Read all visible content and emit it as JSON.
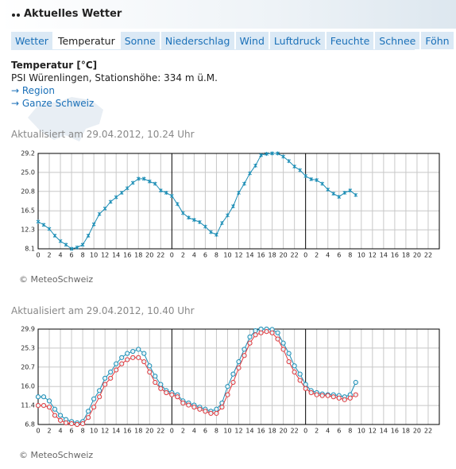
{
  "header": {
    "title": "Aktuelles Wetter"
  },
  "tabs": [
    {
      "label": "Wetter"
    },
    {
      "label": "Temperatur",
      "active": true
    },
    {
      "label": "Sonne"
    },
    {
      "label": "Niederschlag"
    },
    {
      "label": "Wind"
    },
    {
      "label": "Luftdruck"
    },
    {
      "label": "Feuchte"
    },
    {
      "label": "Schnee"
    },
    {
      "label": "Föhn"
    }
  ],
  "station": {
    "heading": "Temperatur [°C]",
    "name": "PSI Würenlingen, Stationshöhe: 334 m ü.M.",
    "links": [
      "Region",
      "Ganze Schweiz"
    ]
  },
  "chart_data": [
    {
      "type": "line",
      "updated": "Aktualisiert am 29.04.2012, 10.24 Uhr",
      "credit": "© MeteoSchweiz",
      "marker": "cross",
      "grid": true,
      "x": [
        0,
        1,
        2,
        3,
        4,
        5,
        6,
        7,
        8,
        9,
        10,
        11,
        12,
        13,
        14,
        15,
        16,
        17,
        18,
        19,
        20,
        21,
        22,
        23,
        24,
        25,
        26,
        27,
        28,
        29,
        30,
        31,
        32,
        33,
        34,
        35,
        36,
        37,
        38,
        39,
        40,
        41,
        42,
        43,
        44,
        45,
        46,
        47,
        48,
        49,
        50,
        51,
        52,
        53,
        54,
        55,
        56,
        57
      ],
      "xlim": [
        0,
        72
      ],
      "xticks": [
        0,
        2,
        4,
        6,
        8,
        10,
        12,
        14,
        16,
        18,
        20,
        22,
        {
          "value": 24,
          "label": "0"
        },
        {
          "value": 26,
          "label": "2"
        },
        {
          "value": 28,
          "label": "4"
        },
        {
          "value": 30,
          "label": "6"
        },
        {
          "value": 32,
          "label": "8"
        },
        {
          "value": 34,
          "label": "10"
        },
        {
          "value": 36,
          "label": "12"
        },
        {
          "value": 38,
          "label": "14"
        },
        {
          "value": 40,
          "label": "16"
        },
        {
          "value": 42,
          "label": "18"
        },
        {
          "value": 44,
          "label": "20"
        },
        {
          "value": 46,
          "label": "22"
        },
        {
          "value": 48,
          "label": "0"
        },
        {
          "value": 50,
          "label": "2"
        },
        {
          "value": 52,
          "label": "4"
        },
        {
          "value": 54,
          "label": "6"
        },
        {
          "value": 56,
          "label": "8"
        },
        {
          "value": 58,
          "label": "10"
        },
        {
          "value": 60,
          "label": "12"
        },
        {
          "value": 62,
          "label": "14"
        },
        {
          "value": 64,
          "label": "16"
        },
        {
          "value": 66,
          "label": "18"
        },
        {
          "value": 68,
          "label": "20"
        },
        {
          "value": 70,
          "label": "22"
        }
      ],
      "ylim": [
        8.1,
        29.2
      ],
      "yticks": [
        8.1,
        12.3,
        16.5,
        20.8,
        {
          "value": 25,
          "label": "25.0"
        },
        29.2
      ],
      "series": [
        {
          "color": "#1b8db5",
          "values": [
            14.1,
            13.4,
            12.5,
            11.0,
            9.8,
            9.0,
            8.1,
            8.4,
            9.0,
            11.0,
            13.5,
            15.8,
            17.0,
            18.5,
            19.5,
            20.5,
            21.5,
            22.7,
            23.6,
            23.6,
            23.0,
            22.5,
            21.0,
            20.5,
            19.8,
            18.0,
            16.0,
            15.0,
            14.5,
            14.0,
            13.0,
            11.8,
            11.2,
            13.8,
            15.5,
            17.5,
            20.5,
            22.5,
            24.8,
            26.5,
            28.8,
            29.1,
            29.2,
            29.2,
            28.5,
            27.5,
            26.3,
            25.5,
            24.2,
            23.5,
            23.3,
            22.5,
            21.2,
            20.3,
            19.6,
            20.5,
            21.0,
            20.0
          ]
        }
      ]
    },
    {
      "type": "line",
      "updated": "Aktualisiert am 29.04.2012, 10.40 Uhr",
      "credit": "© MeteoSchweiz",
      "marker": "circle",
      "grid": true,
      "x": [
        0,
        1,
        2,
        3,
        4,
        5,
        6,
        7,
        8,
        9,
        10,
        11,
        12,
        13,
        14,
        15,
        16,
        17,
        18,
        19,
        20,
        21,
        22,
        23,
        24,
        25,
        26,
        27,
        28,
        29,
        30,
        31,
        32,
        33,
        34,
        35,
        36,
        37,
        38,
        39,
        40,
        41,
        42,
        43,
        44,
        45,
        46,
        47,
        48,
        49,
        50,
        51,
        52,
        53,
        54,
        55,
        56,
        57
      ],
      "xlim": [
        0,
        72
      ],
      "xticks": [
        0,
        2,
        4,
        6,
        8,
        10,
        12,
        14,
        16,
        18,
        20,
        22,
        {
          "value": 24,
          "label": "0"
        },
        {
          "value": 26,
          "label": "2"
        },
        {
          "value": 28,
          "label": "4"
        },
        {
          "value": 30,
          "label": "6"
        },
        {
          "value": 32,
          "label": "8"
        },
        {
          "value": 34,
          "label": "10"
        },
        {
          "value": 36,
          "label": "12"
        },
        {
          "value": 38,
          "label": "14"
        },
        {
          "value": 40,
          "label": "16"
        },
        {
          "value": 42,
          "label": "18"
        },
        {
          "value": 44,
          "label": "20"
        },
        {
          "value": 46,
          "label": "22"
        },
        {
          "value": 48,
          "label": "0"
        },
        {
          "value": 50,
          "label": "2"
        },
        {
          "value": 52,
          "label": "4"
        },
        {
          "value": 54,
          "label": "6"
        },
        {
          "value": 56,
          "label": "8"
        },
        {
          "value": 58,
          "label": "10"
        },
        {
          "value": 60,
          "label": "12"
        },
        {
          "value": 62,
          "label": "14"
        },
        {
          "value": 64,
          "label": "16"
        },
        {
          "value": 66,
          "label": "18"
        },
        {
          "value": 68,
          "label": "20"
        },
        {
          "value": 70,
          "label": "22"
        }
      ],
      "ylim": [
        6.8,
        29.9
      ],
      "yticks": [
        6.8,
        11.4,
        {
          "value": 16,
          "label": "16.0"
        },
        20.7,
        25.3,
        29.9
      ],
      "series": [
        {
          "color": "#1b8db5",
          "values": [
            13.5,
            13.5,
            12.5,
            10.5,
            9.0,
            8.0,
            7.5,
            7.2,
            7.5,
            10.0,
            13.0,
            15.0,
            18.0,
            19.5,
            21.5,
            23.0,
            24.0,
            24.5,
            25.0,
            24.0,
            21.0,
            18.5,
            16.5,
            15.0,
            14.5,
            14.0,
            12.5,
            12.0,
            11.5,
            11.0,
            10.5,
            10.0,
            10.5,
            12.0,
            16.0,
            19.0,
            22.0,
            25.0,
            28.0,
            29.5,
            29.9,
            29.9,
            29.8,
            29.0,
            26.5,
            24.0,
            21.0,
            19.0,
            16.5,
            15.0,
            14.5,
            14.2,
            14.0,
            14.0,
            13.8,
            13.5,
            14.0,
            17.0
          ]
        },
        {
          "color": "#e0383c",
          "values": [
            11.4,
            11.4,
            11.0,
            9.0,
            7.8,
            7.2,
            7.0,
            6.8,
            7.0,
            8.5,
            11.0,
            13.5,
            16.5,
            18.0,
            20.0,
            21.5,
            22.5,
            23.0,
            23.0,
            22.0,
            19.5,
            17.0,
            15.5,
            14.5,
            14.0,
            13.5,
            12.0,
            11.5,
            11.0,
            10.5,
            10.0,
            9.5,
            9.5,
            11.0,
            14.0,
            17.0,
            20.5,
            23.5,
            26.5,
            28.5,
            29.0,
            29.3,
            29.0,
            27.5,
            25.0,
            22.0,
            19.5,
            17.5,
            15.5,
            14.5,
            14.0,
            13.8,
            13.8,
            13.5,
            13.2,
            12.8,
            13.2,
            14.0
          ]
        }
      ]
    }
  ]
}
